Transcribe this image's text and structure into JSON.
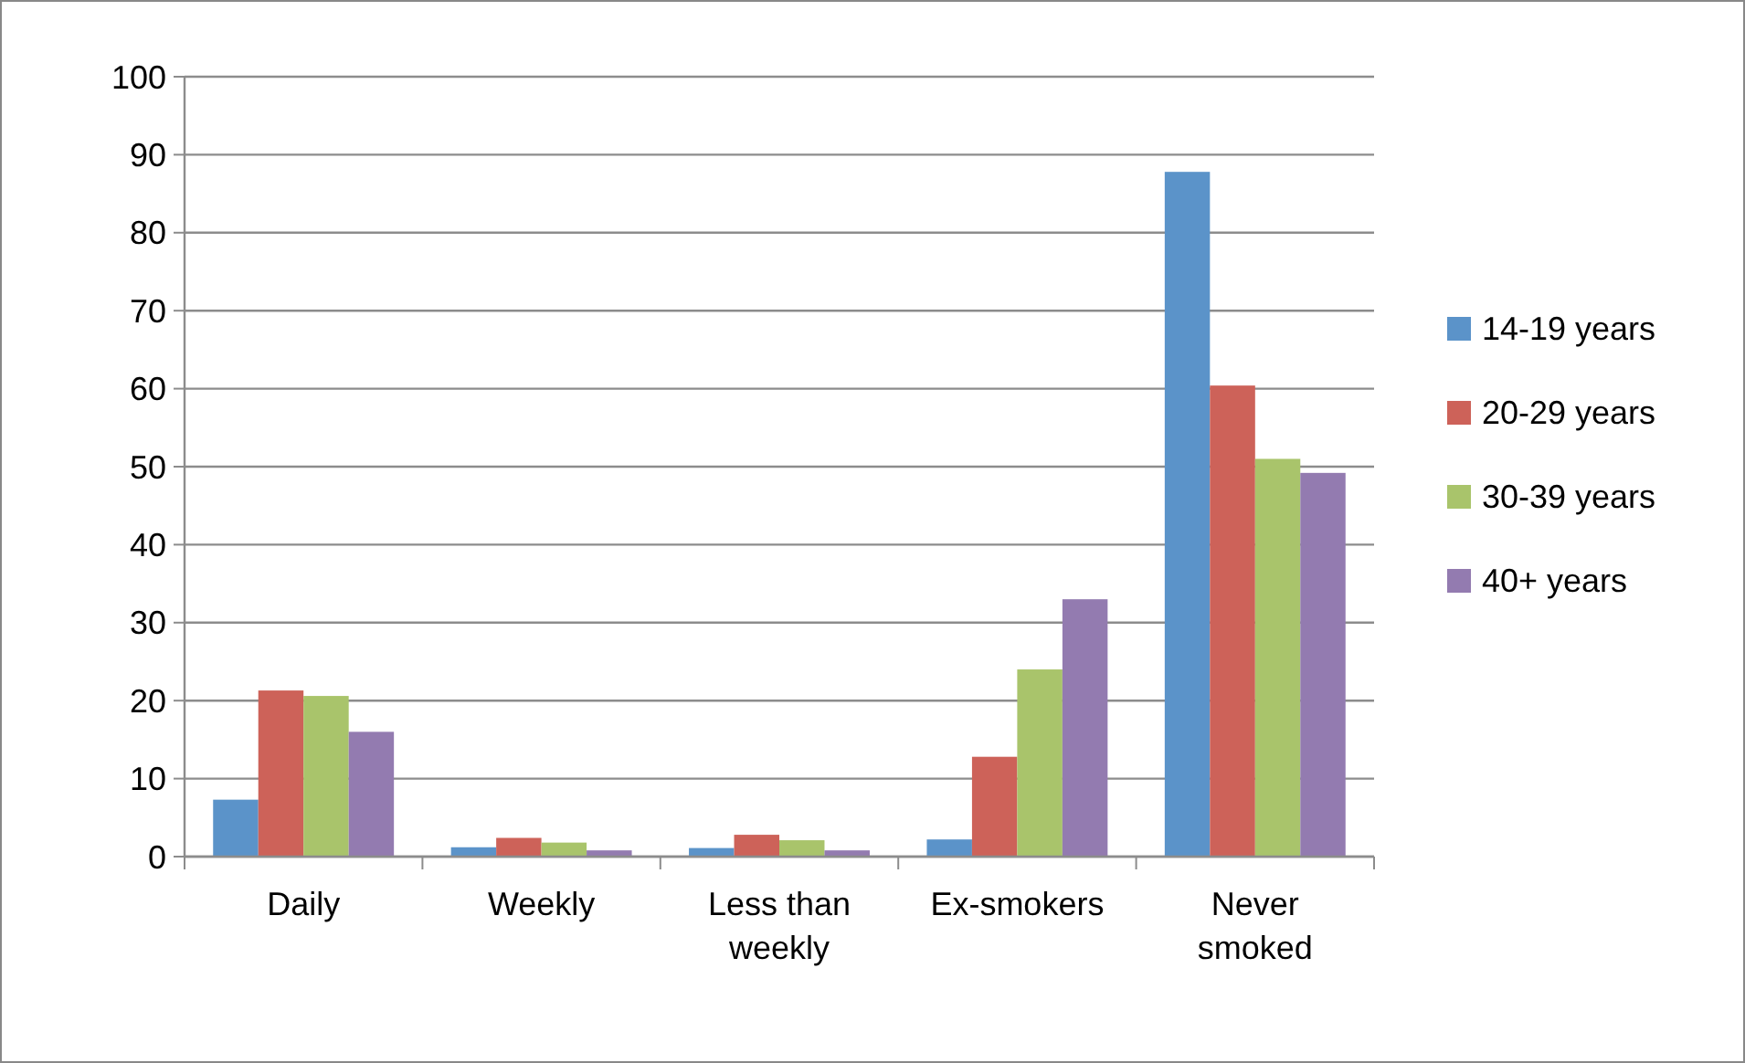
{
  "chart_data": {
    "type": "bar",
    "categories": [
      "Daily",
      "Weekly",
      "Less than weekly",
      "Ex-smokers",
      "Never smoked"
    ],
    "series": [
      {
        "name": "14-19 years",
        "color": "#5b93c9",
        "values": [
          7.3,
          1.2,
          1.1,
          2.2,
          87.8
        ]
      },
      {
        "name": "20-29 years",
        "color": "#cd6259",
        "values": [
          21.3,
          2.4,
          2.8,
          12.8,
          60.4
        ]
      },
      {
        "name": "30-39 years",
        "color": "#a9c46b",
        "values": [
          20.6,
          1.8,
          2.1,
          24,
          51
        ]
      },
      {
        "name": "40+ years",
        "color": "#937bb0",
        "values": [
          16,
          0.8,
          0.8,
          33,
          49.2
        ]
      }
    ],
    "ylim": [
      0,
      100
    ],
    "yticks": [
      0,
      10,
      20,
      30,
      40,
      50,
      60,
      70,
      80,
      90,
      100
    ],
    "grid": "y",
    "legend": "right"
  }
}
